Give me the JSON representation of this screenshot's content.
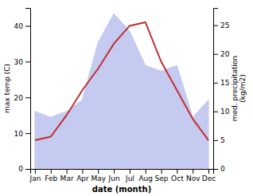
{
  "chart_data": {
    "type": "line",
    "xlabel": "date (month)",
    "ylabel": "max temp (C)",
    "y2label": "med. precipitation\n(kg/m2)",
    "categories": [
      "Jan",
      "Feb",
      "Mar",
      "Apr",
      "May",
      "Jun",
      "Jul",
      "Aug",
      "Sep",
      "Oct",
      "Nov",
      "Dec"
    ],
    "series": [
      {
        "type": "line",
        "color": "#c03030",
        "values": [
          8,
          9,
          15,
          22,
          28,
          35,
          40,
          41,
          30,
          22,
          14,
          8
        ]
      },
      {
        "type": "area",
        "axis": "y2",
        "color": "#c5caf0",
        "values": [
          10,
          9,
          10,
          12,
          22,
          27,
          24,
          18,
          17,
          18,
          9,
          12
        ]
      }
    ],
    "ylim": [
      0,
      45
    ],
    "yticks": [
      0,
      10,
      20,
      30,
      40
    ],
    "y2lim": [
      0,
      28
    ],
    "y2ticks": [
      0,
      5,
      10,
      15,
      20,
      25
    ]
  }
}
